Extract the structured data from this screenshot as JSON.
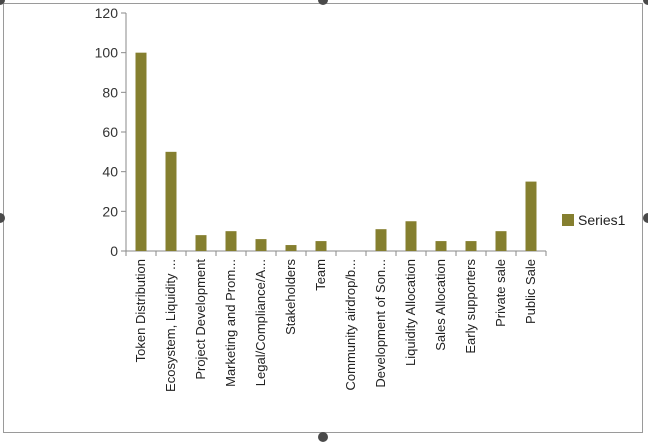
{
  "chart_data": {
    "type": "bar",
    "categories": [
      "Token Distribution",
      "Ecosystem, Liquidity ...",
      "Project Development",
      "Marketing and Prom...",
      "Legal/Compliance/A...",
      "Stakeholders",
      "Team",
      "Community airdrop/b...",
      "Development of Son...",
      "Liquidity Allocation",
      "Sales Allocation",
      "Early supporters",
      "Private sale",
      "Public Sale"
    ],
    "series": [
      {
        "name": "Series1",
        "values": [
          100,
          50,
          8,
          10,
          6,
          3,
          5,
          0,
          11,
          15,
          5,
          5,
          10,
          35
        ]
      }
    ],
    "ylim": [
      0,
      120
    ],
    "yticks": [
      0,
      20,
      40,
      60,
      80,
      100,
      120
    ],
    "ytick_labels": [
      "0",
      "20",
      "40",
      "60",
      "80",
      "100",
      "120"
    ],
    "grid": false,
    "legend": "right",
    "colors": {
      "bar": "#857f2f",
      "axis": "#8a8a8a"
    }
  }
}
